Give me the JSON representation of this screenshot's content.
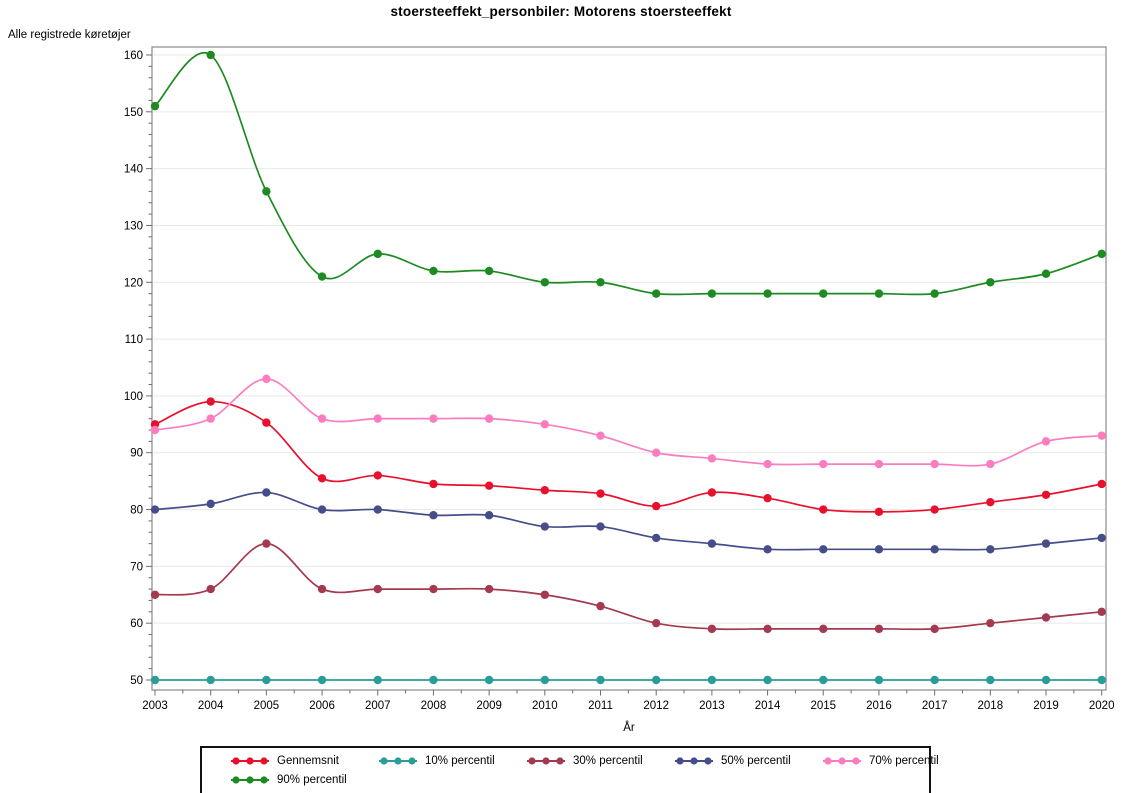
{
  "title": "stoersteeffekt_personbiler: Motorens stoersteeffekt",
  "axes": {
    "y_title": "Alle registrede køretøjer",
    "x_title": "År"
  },
  "chart_data": {
    "type": "line",
    "title": "stoersteeffekt_personbiler: Motorens stoersteeffekt",
    "xlabel": "År",
    "ylabel": "Alle registrede køretøjer",
    "x": [
      2003,
      2004,
      2005,
      2006,
      2007,
      2008,
      2009,
      2010,
      2011,
      2012,
      2013,
      2014,
      2015,
      2016,
      2017,
      2018,
      2019,
      2020
    ],
    "ylim": [
      50,
      160
    ],
    "y_ticks": [
      50,
      60,
      70,
      80,
      90,
      100,
      110,
      120,
      130,
      140,
      150,
      160
    ],
    "y_minor_step": 2,
    "grid": "horizontal",
    "legend_position": "bottom",
    "series": [
      {
        "name": "Gennemsnit",
        "color": "#e8112d",
        "values": [
          95,
          99,
          95.3,
          85.5,
          86,
          84.5,
          84.2,
          83.4,
          82.8,
          80.6,
          83,
          82,
          80,
          79.6,
          80,
          81.3,
          82.6,
          84.5
        ]
      },
      {
        "name": "10% percentil",
        "color": "#2a9d96",
        "values": [
          50,
          50,
          50,
          50,
          50,
          50,
          50,
          50,
          50,
          50,
          50,
          50,
          50,
          50,
          50,
          50,
          50,
          50
        ]
      },
      {
        "name": "30% percentil",
        "color": "#a33a50",
        "values": [
          65,
          66,
          74,
          66,
          66,
          66,
          66,
          65,
          63,
          60,
          59,
          59,
          59,
          59,
          59,
          60,
          61,
          62
        ]
      },
      {
        "name": "50% percentil",
        "color": "#464e8a",
        "values": [
          80,
          81,
          83,
          80,
          80,
          79,
          79,
          77,
          77,
          75,
          74,
          73,
          73,
          73,
          73,
          73,
          74,
          75
        ]
      },
      {
        "name": "70% percentil",
        "color": "#fb7dc0",
        "values": [
          94,
          96,
          103,
          96,
          96,
          96,
          96,
          95,
          93,
          90,
          89,
          88,
          88,
          88,
          88,
          88,
          92,
          93
        ]
      },
      {
        "name": "90% percentil",
        "color": "#1e8a22",
        "values": [
          151,
          160,
          136,
          121,
          125,
          122,
          122,
          120,
          120,
          118,
          118,
          118,
          118,
          118,
          118,
          120,
          121.5,
          125
        ]
      }
    ],
    "styles": {
      "plot_border_color": "#8a8a8a",
      "gridline_color": "#e9e9e9",
      "tick_color": "#6e6e6e",
      "label_color": "#000000"
    }
  }
}
